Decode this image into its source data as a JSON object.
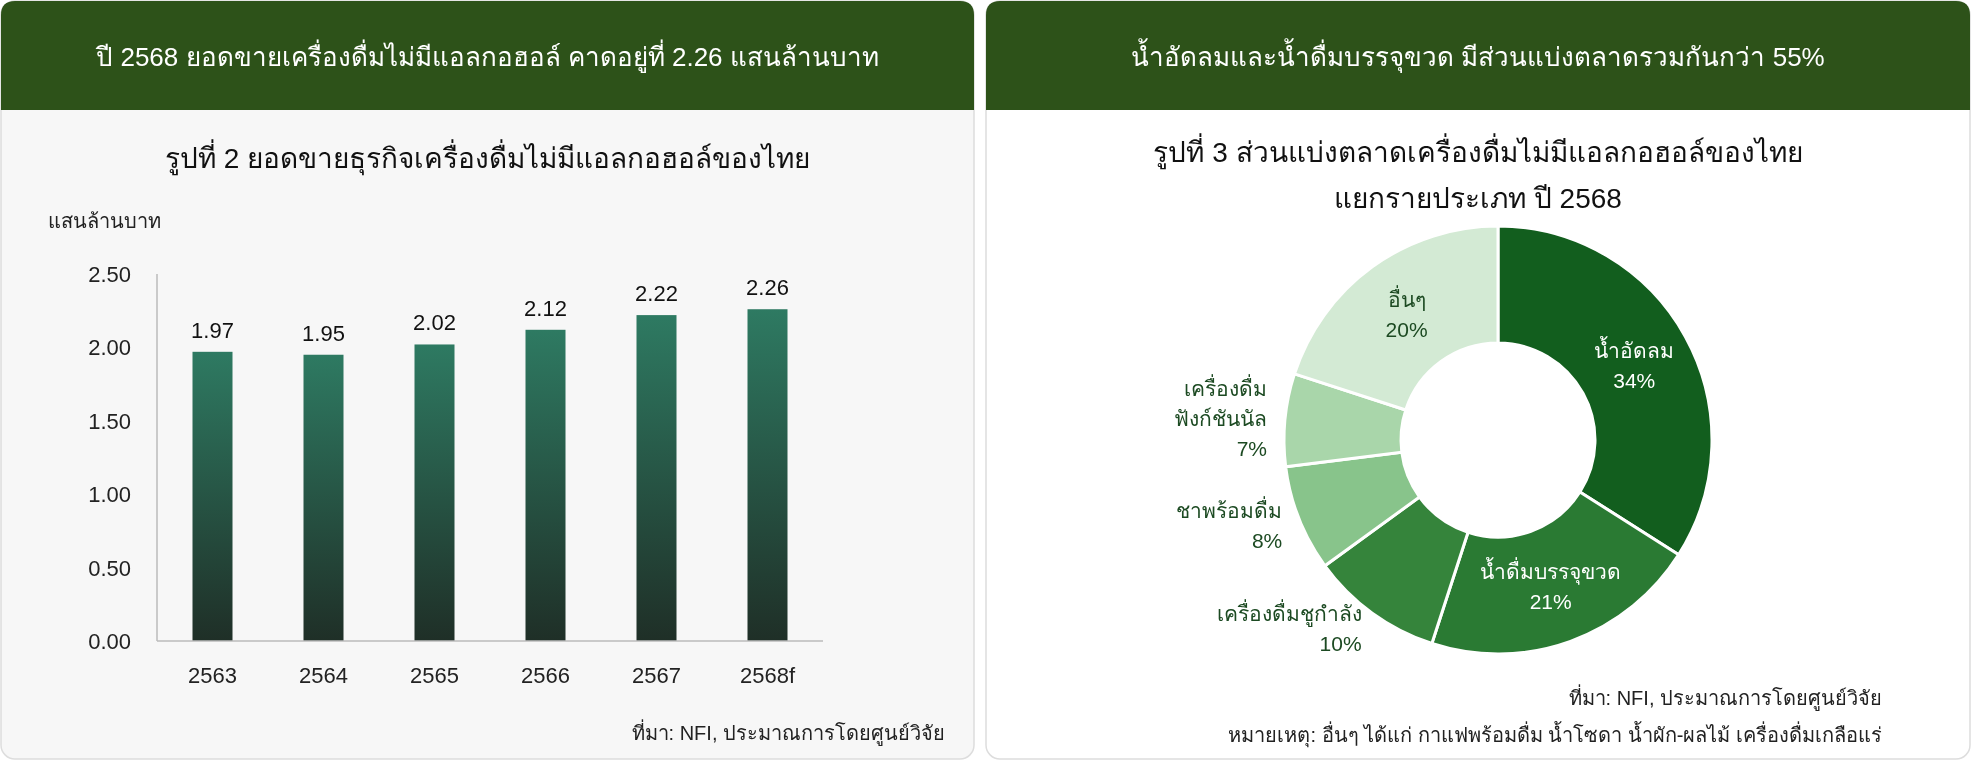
{
  "chart_data": [
    {
      "type": "bar",
      "title": "ปี 2568 ยอดขายเครื่องดื่มไม่มีแอลกอฮอล์ คาดอยู่ที่ 2.26 แสนล้านบาท",
      "subtitle": "รูปที่ 2  ยอดขายธุรกิจเครื่องดื่มไม่มีแอลกอฮอล์ของไทย",
      "ylabel": "แสนล้านบาท",
      "categories": [
        "2563",
        "2564",
        "2565",
        "2566",
        "2567",
        "2568f"
      ],
      "values": [
        1.97,
        1.95,
        2.02,
        2.12,
        2.22,
        2.26
      ],
      "color": "#2e7a62",
      "ylim": [
        0,
        2.5
      ],
      "yticks": [
        {
          "value": 0,
          "label": "0.00"
        },
        {
          "value": 0.5,
          "label": "0.50"
        },
        {
          "value": 1,
          "label": "1.00"
        },
        {
          "value": 1.5,
          "label": "1.50"
        },
        {
          "value": 2,
          "label": "2.00"
        },
        {
          "value": 2.5,
          "label": "2.50"
        }
      ],
      "data_labels": true,
      "grid": false,
      "annotations": [
        "ที่มา: NFI, ประมาณการโดยศูนย์วิจัย"
      ]
    },
    {
      "type": "donut",
      "title": "น้ำอัดลมและน้ำดื่มบรรจุขวด มีส่วนแบ่งตลาดรวมกันกว่า 55%",
      "subtitle": "รูปที่ 3 ส่วนแบ่งตลาดเครื่องดื่มไม่มีแอลกอฮอล์ของไทย\nแยกรายประเภท ปี 2568",
      "categories": [
        "น้ำอัดลม",
        "น้ำดื่มบรรจุขวด",
        "เครื่องดื่มชูกำลัง",
        "ชาพร้อมดื่ม",
        "เครื่องดื่ม\nฟังก์ชันนัล",
        "อื่นๆ"
      ],
      "values": [
        34,
        21,
        10,
        8,
        7,
        20
      ],
      "colors": [
        "#125e1e",
        "#2a7a33",
        "#35843b",
        "#88c48b",
        "#a9d6aa",
        "#d3ead4"
      ],
      "value_labels": [
        "34%",
        "21%",
        "10%",
        "8%",
        "7%",
        "20%"
      ],
      "annotations": [
        "ที่มา: NFI, ประมาณการโดยศูนย์วิจัย",
        "หมายเหตุ: อื่นๆ ได้แก่ กาแฟพร้อมดื่ม น้ำโซดา น้ำผัก-ผลไม้ เครื่องดื่มเกลือแร่"
      ]
    }
  ]
}
